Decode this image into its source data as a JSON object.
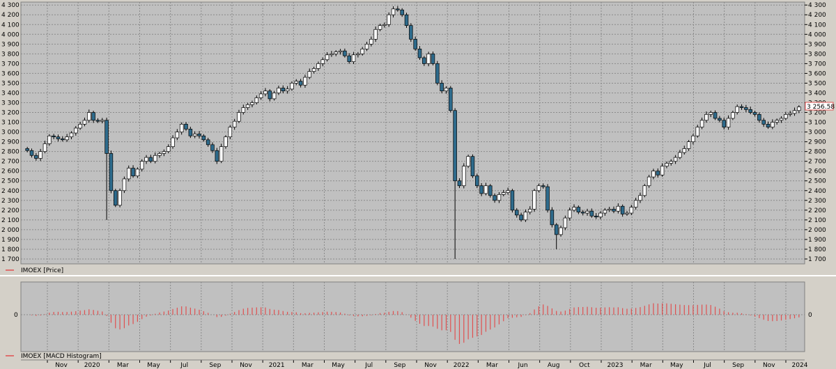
{
  "chart_data": [
    {
      "type": "candlestick",
      "series_name": "IMOEX [Price]",
      "ylim": [
        1650,
        4330
      ],
      "y_ticks": [
        1700,
        1800,
        1900,
        2000,
        2100,
        2200,
        2300,
        2400,
        2500,
        2600,
        2700,
        2800,
        2900,
        3000,
        3100,
        3200,
        3300,
        3400,
        3500,
        3600,
        3700,
        3800,
        3900,
        4000,
        4100,
        4200,
        4300
      ],
      "y_tick_labels": [
        "1 700",
        "1 800",
        "1 900",
        "2 000",
        "2 100",
        "2 200",
        "2 300",
        "2 400",
        "2 500",
        "2 600",
        "2 700",
        "2 800",
        "2 900",
        "3 000",
        "3 100",
        "3 200",
        "3 300",
        "3 400",
        "3 500",
        "3 600",
        "3 700",
        "3 800",
        "3 900",
        "4 000",
        "4 100",
        "4 200",
        "4 300"
      ],
      "last_price_label": "3 256.58",
      "grid": true,
      "close_series": [
        2810,
        2760,
        2730,
        2800,
        2880,
        2960,
        2950,
        2930,
        2920,
        2950,
        2990,
        3040,
        3080,
        3120,
        3200,
        3120,
        3110,
        3120,
        2780,
        2400,
        2250,
        2400,
        2520,
        2630,
        2550,
        2620,
        2700,
        2740,
        2700,
        2760,
        2780,
        2800,
        2850,
        2940,
        3000,
        3080,
        3030,
        2960,
        2980,
        2960,
        2920,
        2870,
        2810,
        2700,
        2850,
        2950,
        3050,
        3110,
        3200,
        3250,
        3280,
        3300,
        3350,
        3390,
        3420,
        3340,
        3400,
        3450,
        3420,
        3440,
        3500,
        3520,
        3480,
        3560,
        3620,
        3650,
        3700,
        3740,
        3790,
        3800,
        3820,
        3830,
        3780,
        3720,
        3790,
        3800,
        3850,
        3900,
        3950,
        4050,
        4090,
        4100,
        4200,
        4260,
        4250,
        4200,
        4090,
        3950,
        3850,
        3760,
        3700,
        3800,
        3700,
        3500,
        3420,
        3450,
        3220,
        2500,
        2450,
        2650,
        2750,
        2550,
        2450,
        2370,
        2450,
        2350,
        2300,
        2360,
        2380,
        2400,
        2200,
        2150,
        2100,
        2180,
        2210,
        2400,
        2450,
        2440,
        2200,
        2050,
        1950,
        2020,
        2120,
        2200,
        2230,
        2180,
        2170,
        2190,
        2140,
        2130,
        2170,
        2200,
        2210,
        2190,
        2240,
        2160,
        2170,
        2230,
        2300,
        2350,
        2450,
        2540,
        2600,
        2560,
        2650,
        2680,
        2700,
        2740,
        2790,
        2830,
        2900,
        2960,
        3050,
        3120,
        3180,
        3200,
        3140,
        3120,
        3050,
        3140,
        3200,
        3260,
        3250,
        3230,
        3200,
        3180,
        3120,
        3080,
        3050,
        3100,
        3120,
        3140,
        3180,
        3190,
        3220,
        3256.58
      ]
    },
    {
      "type": "bar",
      "series_name": "IMOEX [MACD Histogram]",
      "zero_label": "0",
      "grid": true,
      "x_tick_labels": [
        "Nov",
        "2020",
        "Mar",
        "May",
        "Jul",
        "Sep",
        "Nov",
        "2021",
        "Mar",
        "May",
        "Jul",
        "Sep",
        "Nov",
        "2022",
        "Mar",
        "Jun",
        "Aug",
        "Oct",
        "2023",
        "Mar",
        "May",
        "Jul",
        "Sep",
        "Nov",
        "2024"
      ]
    }
  ]
}
